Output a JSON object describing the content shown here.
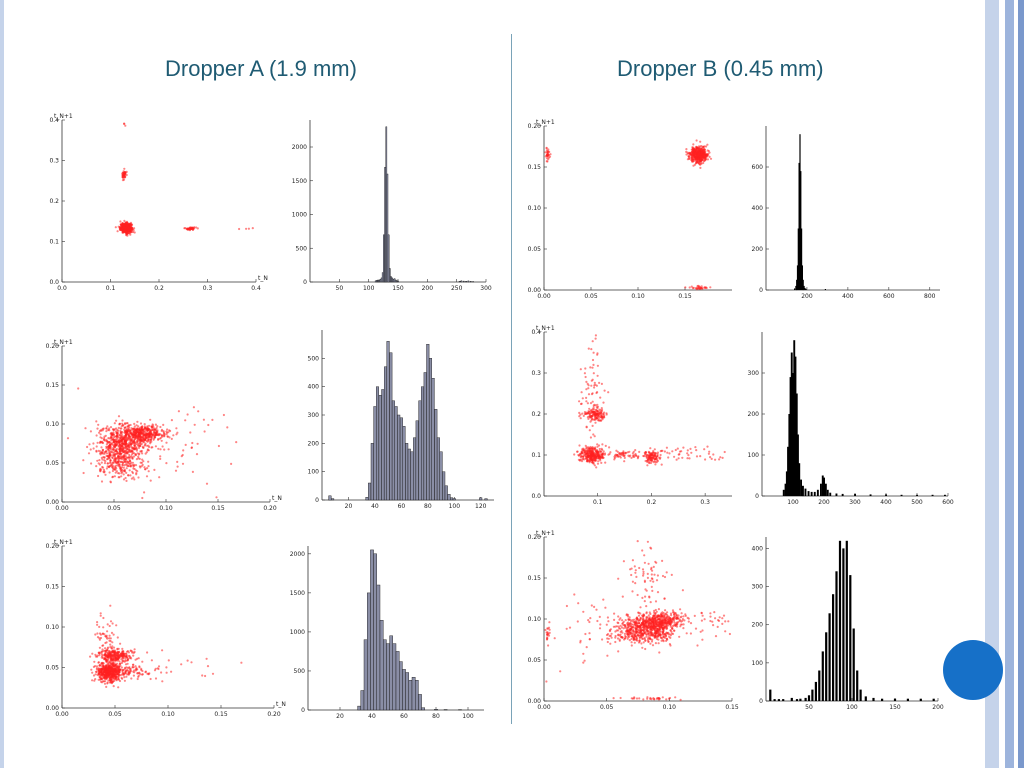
{
  "slide": {
    "title_a": "Dropper A (1.9 mm)",
    "title_b": "Dropper B (0.45 mm)",
    "colors": {
      "title": "#1f5b73",
      "scatter": "#ff2020",
      "hist_fill_a": "#8a8ea6",
      "hist_fill_b": "#000000",
      "frame_stripes": [
        "#c5d3ea",
        "#9db4dc",
        "#7a98cc"
      ],
      "accent_circle": "#1670c8"
    }
  },
  "chart_data": [
    {
      "id": "A1-scatter",
      "type": "scatter",
      "xlabel": "t_N",
      "ylabel": "t_N+1",
      "xlim": [
        0,
        0.4
      ],
      "ylim": [
        0,
        0.4
      ],
      "xticks": [
        "0.0",
        "0.1",
        "0.2",
        "0.3",
        "0.4"
      ],
      "yticks": [
        "0.0",
        "0.1",
        "0.2",
        "0.3",
        "0.4"
      ],
      "clusters": [
        {
          "cx": 0.132,
          "cy": 0.133,
          "sx": 0.006,
          "sy": 0.006,
          "n": 420
        },
        {
          "cx": 0.128,
          "cy": 0.265,
          "sx": 0.002,
          "sy": 0.006,
          "n": 40
        },
        {
          "cx": 0.265,
          "cy": 0.132,
          "sx": 0.006,
          "sy": 0.002,
          "n": 40
        },
        {
          "cx": 0.38,
          "cy": 0.132,
          "sx": 0.01,
          "sy": 0.002,
          "n": 4
        },
        {
          "cx": 0.128,
          "cy": 0.39,
          "sx": 0.002,
          "sy": 0.004,
          "n": 3
        }
      ]
    },
    {
      "id": "A1-hist",
      "type": "bar",
      "xlim": [
        0,
        300
      ],
      "ylim": [
        0,
        2400
      ],
      "xticks": [
        "50",
        "100",
        "150",
        "200",
        "250",
        "300"
      ],
      "yticks": [
        "0",
        "500",
        "1000",
        "1500",
        "2000"
      ],
      "bins": [
        [
          112,
          18
        ],
        [
          114,
          25
        ],
        [
          116,
          30
        ],
        [
          118,
          28
        ],
        [
          120,
          40
        ],
        [
          122,
          60
        ],
        [
          124,
          140
        ],
        [
          126,
          700
        ],
        [
          128,
          1700
        ],
        [
          130,
          2300
        ],
        [
          132,
          1600
        ],
        [
          134,
          700
        ],
        [
          136,
          200
        ],
        [
          138,
          80
        ],
        [
          140,
          60
        ],
        [
          142,
          40
        ],
        [
          144,
          50
        ],
        [
          146,
          30
        ],
        [
          148,
          20
        ],
        [
          150,
          15
        ],
        [
          255,
          12
        ],
        [
          258,
          18
        ],
        [
          262,
          14
        ],
        [
          266,
          12
        ],
        [
          270,
          16
        ],
        [
          274,
          10
        ],
        [
          278,
          8
        ]
      ]
    },
    {
      "id": "B1-scatter",
      "type": "scatter",
      "xlabel": "",
      "ylabel": "t_N+1",
      "xlim": [
        0,
        0.2
      ],
      "ylim": [
        0,
        0.2
      ],
      "xticks": [
        "0.00",
        "0.05",
        "0.10",
        "0.15"
      ],
      "yticks": [
        "0.00",
        "0.05",
        "0.10",
        "0.15",
        "0.20"
      ],
      "clusters": [
        {
          "cx": 0.165,
          "cy": 0.165,
          "sx": 0.005,
          "sy": 0.005,
          "n": 420
        },
        {
          "cx": 0.004,
          "cy": 0.165,
          "sx": 0.001,
          "sy": 0.004,
          "n": 30
        },
        {
          "cx": 0.165,
          "cy": 0.003,
          "sx": 0.005,
          "sy": 0.001,
          "n": 30
        }
      ]
    },
    {
      "id": "B1-hist",
      "type": "bar",
      "xlim": [
        0,
        850
      ],
      "ylim": [
        0,
        800
      ],
      "xticks": [
        "200",
        "400",
        "600",
        "800"
      ],
      "yticks": [
        "0",
        "200",
        "400",
        "600"
      ],
      "bins": [
        [
          140,
          8
        ],
        [
          146,
          20
        ],
        [
          150,
          50
        ],
        [
          154,
          120
        ],
        [
          158,
          300
        ],
        [
          162,
          620
        ],
        [
          166,
          760
        ],
        [
          170,
          580
        ],
        [
          174,
          300
        ],
        [
          178,
          120
        ],
        [
          182,
          50
        ],
        [
          186,
          20
        ],
        [
          190,
          10
        ],
        [
          195,
          6
        ],
        [
          290,
          5
        ]
      ]
    },
    {
      "id": "A2-scatter",
      "type": "scatter",
      "xlabel": "t_N",
      "ylabel": "t_N+1",
      "xlim": [
        0,
        0.2
      ],
      "ylim": [
        0,
        0.2
      ],
      "xticks": [
        "0.00",
        "0.05",
        "0.10",
        "0.15",
        "0.20"
      ],
      "yticks": [
        "0.00",
        "0.05",
        "0.10",
        "0.15",
        "0.20"
      ],
      "clusters": [
        {
          "cx": 0.06,
          "cy": 0.08,
          "sx": 0.012,
          "sy": 0.01,
          "n": 500
        },
        {
          "cx": 0.055,
          "cy": 0.055,
          "sx": 0.012,
          "sy": 0.012,
          "n": 350
        },
        {
          "cx": 0.08,
          "cy": 0.088,
          "sx": 0.01,
          "sy": 0.005,
          "n": 300
        },
        {
          "cx": 0.1,
          "cy": 0.07,
          "sx": 0.04,
          "sy": 0.03,
          "n": 80
        }
      ]
    },
    {
      "id": "A2-hist",
      "type": "bar",
      "xlim": [
        0,
        130
      ],
      "ylim": [
        0,
        600
      ],
      "xticks": [
        "20",
        "40",
        "60",
        "80",
        "100",
        "120"
      ],
      "yticks": [
        "0",
        "100",
        "200",
        "300",
        "400",
        "500"
      ],
      "bins": [
        [
          6,
          15
        ],
        [
          8,
          5
        ],
        [
          34,
          10
        ],
        [
          36,
          60
        ],
        [
          38,
          200
        ],
        [
          40,
          330
        ],
        [
          42,
          400
        ],
        [
          44,
          370
        ],
        [
          46,
          390
        ],
        [
          48,
          470
        ],
        [
          50,
          560
        ],
        [
          52,
          520
        ],
        [
          54,
          350
        ],
        [
          56,
          330
        ],
        [
          58,
          300
        ],
        [
          60,
          290
        ],
        [
          62,
          260
        ],
        [
          64,
          200
        ],
        [
          66,
          180
        ],
        [
          68,
          170
        ],
        [
          70,
          220
        ],
        [
          72,
          280
        ],
        [
          74,
          350
        ],
        [
          76,
          400
        ],
        [
          78,
          450
        ],
        [
          80,
          550
        ],
        [
          82,
          500
        ],
        [
          84,
          430
        ],
        [
          86,
          320
        ],
        [
          88,
          220
        ],
        [
          90,
          170
        ],
        [
          92,
          100
        ],
        [
          94,
          50
        ],
        [
          96,
          20
        ],
        [
          98,
          8
        ],
        [
          100,
          5
        ],
        [
          120,
          8
        ],
        [
          124,
          5
        ]
      ]
    },
    {
      "id": "B2-scatter",
      "type": "scatter",
      "xlabel": "",
      "ylabel": "t_N+1",
      "xlim": [
        0,
        0.35
      ],
      "ylim": [
        0,
        0.4
      ],
      "xticks": [
        "0.1",
        "0.2",
        "0.3"
      ],
      "yticks": [
        "0.0",
        "0.1",
        "0.2",
        "0.3",
        "0.4"
      ],
      "clusters": [
        {
          "cx": 0.09,
          "cy": 0.1,
          "sx": 0.012,
          "sy": 0.01,
          "n": 300
        },
        {
          "cx": 0.095,
          "cy": 0.2,
          "sx": 0.01,
          "sy": 0.008,
          "n": 140
        },
        {
          "cx": 0.2,
          "cy": 0.095,
          "sx": 0.008,
          "sy": 0.008,
          "n": 100
        },
        {
          "cx": 0.09,
          "cy": 0.25,
          "sx": 0.01,
          "sy": 0.06,
          "n": 70
        },
        {
          "cx": 0.25,
          "cy": 0.1,
          "sx": 0.05,
          "sy": 0.01,
          "n": 60
        },
        {
          "cx": 0.15,
          "cy": 0.1,
          "sx": 0.02,
          "sy": 0.005,
          "n": 60
        }
      ]
    },
    {
      "id": "B2-hist",
      "type": "bar",
      "xlim": [
        0,
        600
      ],
      "ylim": [
        0,
        400
      ],
      "xticks": [
        "100",
        "200",
        "300",
        "400",
        "500",
        "600"
      ],
      "yticks": [
        "0",
        "100",
        "200",
        "300"
      ],
      "bins": [
        [
          70,
          15
        ],
        [
          76,
          30
        ],
        [
          80,
          60
        ],
        [
          84,
          120
        ],
        [
          88,
          200
        ],
        [
          92,
          290
        ],
        [
          96,
          350
        ],
        [
          100,
          300
        ],
        [
          104,
          380
        ],
        [
          108,
          340
        ],
        [
          112,
          250
        ],
        [
          116,
          150
        ],
        [
          120,
          80
        ],
        [
          126,
          40
        ],
        [
          132,
          25
        ],
        [
          140,
          18
        ],
        [
          150,
          12
        ],
        [
          160,
          10
        ],
        [
          170,
          10
        ],
        [
          180,
          15
        ],
        [
          190,
          30
        ],
        [
          196,
          50
        ],
        [
          200,
          45
        ],
        [
          206,
          30
        ],
        [
          212,
          15
        ],
        [
          220,
          8
        ],
        [
          240,
          6
        ],
        [
          260,
          5
        ],
        [
          300,
          5
        ],
        [
          350,
          4
        ],
        [
          400,
          4
        ],
        [
          450,
          3
        ],
        [
          500,
          3
        ],
        [
          550,
          3
        ],
        [
          590,
          3
        ]
      ]
    },
    {
      "id": "A3-scatter",
      "type": "scatter",
      "xlabel": "t_N",
      "ylabel": "t_N+1",
      "xlim": [
        0,
        0.2
      ],
      "ylim": [
        0,
        0.2
      ],
      "xticks": [
        "0.00",
        "0.05",
        "0.10",
        "0.15",
        "0.20"
      ],
      "yticks": [
        "0.00",
        "0.05",
        "0.10",
        "0.15",
        "0.20"
      ],
      "clusters": [
        {
          "cx": 0.045,
          "cy": 0.045,
          "sx": 0.006,
          "sy": 0.006,
          "n": 500
        },
        {
          "cx": 0.05,
          "cy": 0.065,
          "sx": 0.008,
          "sy": 0.004,
          "n": 250
        },
        {
          "cx": 0.06,
          "cy": 0.045,
          "sx": 0.015,
          "sy": 0.005,
          "n": 120
        },
        {
          "cx": 0.04,
          "cy": 0.09,
          "sx": 0.006,
          "sy": 0.012,
          "n": 50
        },
        {
          "cx": 0.11,
          "cy": 0.05,
          "sx": 0.04,
          "sy": 0.01,
          "n": 25
        }
      ]
    },
    {
      "id": "A3-hist",
      "type": "bar",
      "xlim": [
        0,
        110
      ],
      "ylim": [
        0,
        2100
      ],
      "xticks": [
        "20",
        "40",
        "60",
        "80",
        "100"
      ],
      "yticks": [
        "0",
        "500",
        "1000",
        "1500",
        "2000"
      ],
      "bins": [
        [
          32,
          50
        ],
        [
          34,
          250
        ],
        [
          36,
          900
        ],
        [
          38,
          1500
        ],
        [
          40,
          2050
        ],
        [
          42,
          2000
        ],
        [
          44,
          1600
        ],
        [
          46,
          1150
        ],
        [
          48,
          900
        ],
        [
          50,
          850
        ],
        [
          52,
          950
        ],
        [
          54,
          850
        ],
        [
          56,
          750
        ],
        [
          58,
          620
        ],
        [
          60,
          520
        ],
        [
          62,
          480
        ],
        [
          64,
          380
        ],
        [
          66,
          420
        ],
        [
          68,
          380
        ],
        [
          70,
          200
        ],
        [
          72,
          30
        ],
        [
          80,
          10
        ],
        [
          86,
          6
        ],
        [
          95,
          5
        ]
      ]
    },
    {
      "id": "B3-scatter",
      "type": "scatter",
      "xlabel": "",
      "ylabel": "t_N+1",
      "xlim": [
        0,
        0.15
      ],
      "ylim": [
        0,
        0.2
      ],
      "xticks": [
        "0.00",
        "0.05",
        "0.10",
        "0.15"
      ],
      "yticks": [
        "0.00",
        "0.05",
        "0.10",
        "0.15",
        "0.20"
      ],
      "clusters": [
        {
          "cx": 0.08,
          "cy": 0.088,
          "sx": 0.012,
          "sy": 0.009,
          "n": 650
        },
        {
          "cx": 0.095,
          "cy": 0.098,
          "sx": 0.008,
          "sy": 0.006,
          "n": 250
        },
        {
          "cx": 0.085,
          "cy": 0.155,
          "sx": 0.012,
          "sy": 0.025,
          "n": 70
        },
        {
          "cx": 0.13,
          "cy": 0.095,
          "sx": 0.025,
          "sy": 0.012,
          "n": 60
        },
        {
          "cx": 0.04,
          "cy": 0.085,
          "sx": 0.015,
          "sy": 0.02,
          "n": 40
        },
        {
          "cx": 0.085,
          "cy": 0.003,
          "sx": 0.01,
          "sy": 0.001,
          "n": 30
        },
        {
          "cx": 0.003,
          "cy": 0.085,
          "sx": 0.001,
          "sy": 0.008,
          "n": 20
        }
      ]
    },
    {
      "id": "B3-hist",
      "type": "bar",
      "xlim": [
        0,
        200
      ],
      "ylim": [
        0,
        430
      ],
      "xticks": [
        "50",
        "100",
        "150",
        "200"
      ],
      "yticks": [
        "0",
        "100",
        "200",
        "300",
        "400"
      ],
      "bins": [
        [
          5,
          30
        ],
        [
          10,
          5
        ],
        [
          15,
          5
        ],
        [
          20,
          5
        ],
        [
          30,
          8
        ],
        [
          36,
          5
        ],
        [
          40,
          6
        ],
        [
          46,
          8
        ],
        [
          50,
          15
        ],
        [
          54,
          30
        ],
        [
          58,
          50
        ],
        [
          62,
          80
        ],
        [
          66,
          130
        ],
        [
          70,
          180
        ],
        [
          74,
          230
        ],
        [
          78,
          280
        ],
        [
          82,
          340
        ],
        [
          86,
          420
        ],
        [
          90,
          400
        ],
        [
          94,
          420
        ],
        [
          98,
          330
        ],
        [
          102,
          190
        ],
        [
          106,
          80
        ],
        [
          110,
          30
        ],
        [
          116,
          12
        ],
        [
          125,
          8
        ],
        [
          135,
          6
        ],
        [
          150,
          6
        ],
        [
          165,
          6
        ],
        [
          180,
          6
        ],
        [
          195,
          6
        ]
      ]
    }
  ]
}
